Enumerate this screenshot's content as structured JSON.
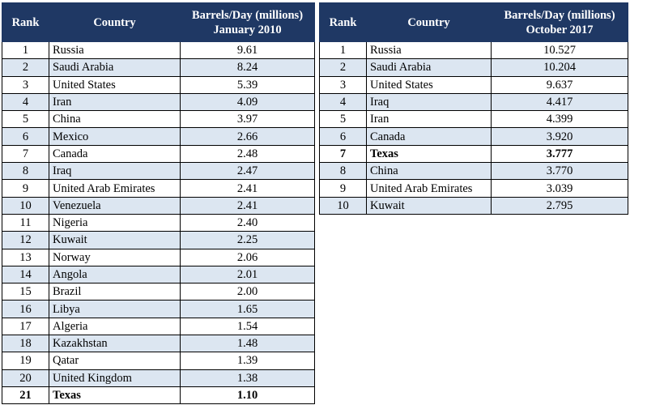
{
  "table_2010": {
    "headers": {
      "rank": "Rank",
      "country": "Country",
      "value_line1": "Barrels/Day (millions)",
      "value_line2": "January 2010"
    },
    "rows": [
      {
        "rank": "1",
        "country": "Russia",
        "value": "9.61"
      },
      {
        "rank": "2",
        "country": "Saudi Arabia",
        "value": "8.24"
      },
      {
        "rank": "3",
        "country": "United States",
        "value": "5.39"
      },
      {
        "rank": "4",
        "country": "Iran",
        "value": "4.09"
      },
      {
        "rank": "5",
        "country": "China",
        "value": "3.97"
      },
      {
        "rank": "6",
        "country": "Mexico",
        "value": "2.66"
      },
      {
        "rank": "7",
        "country": "Canada",
        "value": "2.48"
      },
      {
        "rank": "8",
        "country": "Iraq",
        "value": "2.47"
      },
      {
        "rank": "9",
        "country": "United Arab Emirates",
        "value": "2.41"
      },
      {
        "rank": "10",
        "country": "Venezuela",
        "value": "2.41"
      },
      {
        "rank": "11",
        "country": "Nigeria",
        "value": "2.40"
      },
      {
        "rank": "12",
        "country": "Kuwait",
        "value": "2.25"
      },
      {
        "rank": "13",
        "country": "Norway",
        "value": "2.06"
      },
      {
        "rank": "14",
        "country": "Angola",
        "value": "2.01"
      },
      {
        "rank": "15",
        "country": "Brazil",
        "value": "2.00"
      },
      {
        "rank": "16",
        "country": "Libya",
        "value": "1.65"
      },
      {
        "rank": "17",
        "country": "Algeria",
        "value": "1.54"
      },
      {
        "rank": "18",
        "country": "Kazakhstan",
        "value": "1.48"
      },
      {
        "rank": "19",
        "country": "Qatar",
        "value": "1.39"
      },
      {
        "rank": "20",
        "country": "United Kingdom",
        "value": "1.38"
      },
      {
        "rank": "21",
        "country": "Texas",
        "value": "1.10"
      }
    ]
  },
  "table_2017": {
    "headers": {
      "rank": "Rank",
      "country": "Country",
      "value_line1": "Barrels/Day (millions)",
      "value_line2": "October 2017"
    },
    "rows": [
      {
        "rank": "1",
        "country": "Russia",
        "value": "10.527"
      },
      {
        "rank": "2",
        "country": "Saudi Arabia",
        "value": "10.204"
      },
      {
        "rank": "3",
        "country": "United States",
        "value": "9.637"
      },
      {
        "rank": "4",
        "country": "Iraq",
        "value": "4.417"
      },
      {
        "rank": "5",
        "country": "Iran",
        "value": "4.399"
      },
      {
        "rank": "6",
        "country": "Canada",
        "value": "3.920"
      },
      {
        "rank": "7",
        "country": "Texas",
        "value": "3.777"
      },
      {
        "rank": "8",
        "country": "China",
        "value": "3.770"
      },
      {
        "rank": "9",
        "country": "United Arab Emirates",
        "value": "3.039"
      },
      {
        "rank": "10",
        "country": "Kuwait",
        "value": "2.795"
      }
    ]
  },
  "colors": {
    "header_bg": "#1f3864",
    "header_text": "#ffffff",
    "alt_row": "#dce6f1",
    "row": "#ffffff",
    "border": "#000000"
  },
  "highlight_country": "Texas"
}
